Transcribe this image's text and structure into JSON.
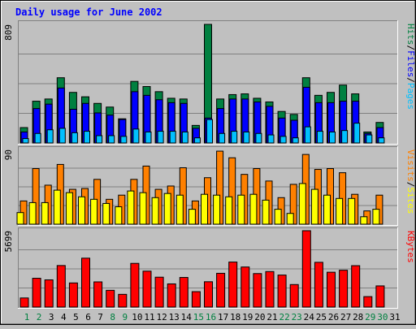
{
  "chart_data": {
    "type": "bar",
    "title": "Daily usage for June 2002",
    "categories": [
      "1",
      "2",
      "3",
      "4",
      "5",
      "6",
      "7",
      "8",
      "9",
      "10",
      "11",
      "12",
      "13",
      "14",
      "15",
      "16",
      "17",
      "18",
      "19",
      "20",
      "21",
      "22",
      "23",
      "24",
      "25",
      "26",
      "27",
      "28",
      "29",
      "30",
      "31"
    ],
    "weekend_days": [
      "1",
      "2",
      "8",
      "9",
      "15",
      "16",
      "22",
      "23",
      "29",
      "30"
    ],
    "panels": [
      {
        "id": "hits",
        "ytick": "809",
        "ymax": 809,
        "label_parts": [
          "Pages",
          "Files",
          "Hits"
        ],
        "series": [
          {
            "name": "Hits",
            "color": "#008040",
            "values": [
              105,
              285,
              300,
              445,
              345,
              315,
              270,
              245,
              165,
              420,
              385,
              350,
              305,
              300,
              120,
              809,
              300,
              330,
              335,
              305,
              280,
              215,
              195,
              445,
              325,
              345,
              395,
              335,
              75,
              140
            ]
          },
          {
            "name": "Files",
            "color": "#0000ff",
            "values": [
              75,
              235,
              265,
              375,
              230,
              270,
              205,
              190,
              160,
              350,
              325,
              295,
              275,
              270,
              100,
              170,
              235,
              300,
              300,
              280,
              250,
              170,
              155,
              380,
              275,
              275,
              285,
              285,
              65,
              105
            ]
          },
          {
            "name": "Pages",
            "color": "#00c0ff",
            "values": [
              30,
              65,
              90,
              100,
              70,
              80,
              50,
              50,
              45,
              95,
              75,
              80,
              80,
              75,
              35,
              160,
              65,
              80,
              75,
              65,
              55,
              45,
              35,
              110,
              80,
              75,
              85,
              135,
              55,
              35
            ]
          }
        ]
      },
      {
        "id": "visits",
        "ytick": "90",
        "ymax": 90,
        "label_parts": [
          "Sites",
          "Visits"
        ],
        "series": [
          {
            "name": "Visits",
            "color": "#ff8000",
            "values": [
              28,
              67,
              47,
              72,
              42,
              43,
              54,
              30,
              35,
              54,
              70,
              42,
              46,
              68,
              28,
              56,
              88,
              80,
              60,
              67,
              52,
              32,
              48,
              84,
              66,
              67,
              62,
              36,
              16,
              35
            ]
          },
          {
            "name": "Sites",
            "color": "#ffff00",
            "values": [
              14,
              26,
              26,
              41,
              38,
              33,
              30,
              25,
              21,
              40,
              38,
              32,
              37,
              35,
              18,
              36,
              35,
              33,
              35,
              36,
              29,
              18,
              13,
              49,
              42,
              35,
              31,
              31,
              9,
              18
            ]
          }
        ]
      },
      {
        "id": "kbytes",
        "ytick": "5699",
        "ymax": 5699,
        "label_parts": [
          "KBytes"
        ],
        "series": [
          {
            "name": "KBytes",
            "color": "#ff0000",
            "values": [
              680,
              2150,
              2030,
              3100,
              1800,
              3650,
              1880,
              1250,
              950,
              3260,
              2680,
              2230,
              1730,
              2210,
              1150,
              1890,
              2520,
              3360,
              2990,
              2500,
              2650,
              2390,
              1680,
              5699,
              3340,
              2600,
              2750,
              3090,
              780,
              1580
            ]
          }
        ]
      }
    ]
  }
}
